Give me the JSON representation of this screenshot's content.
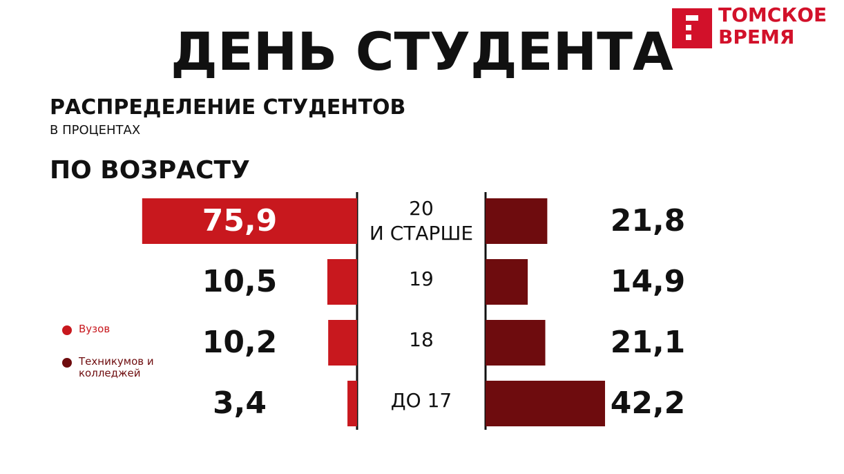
{
  "brand": "ТОМСКОЕ\nВРЕМЯ",
  "chart_data": {
    "type": "butterfly-bar",
    "title": "ДЕНЬ СТУДЕНТА",
    "subtitle": "РАСПРЕДЕЛЕНИЕ СТУДЕНТОВ",
    "unit_note": "В ПРОЦЕНТАХ",
    "group_label": "ПО ВОЗРАСТУ",
    "categories": [
      "20\nИ СТАРШЕ",
      "19",
      "18",
      "ДО 17"
    ],
    "series": [
      {
        "name": "Вузов",
        "color": "#c8181e",
        "values": [
          75.9,
          10.5,
          10.2,
          3.4
        ],
        "value_labels": [
          "75,9",
          "10,5",
          "10,2",
          "3,4"
        ]
      },
      {
        "name": "Техникумов и колледжей",
        "color": "#6e0c0e",
        "values": [
          21.8,
          14.9,
          21.1,
          42.2
        ],
        "value_labels": [
          "21,8",
          "14,9",
          "21,1",
          "42,2"
        ]
      }
    ]
  }
}
